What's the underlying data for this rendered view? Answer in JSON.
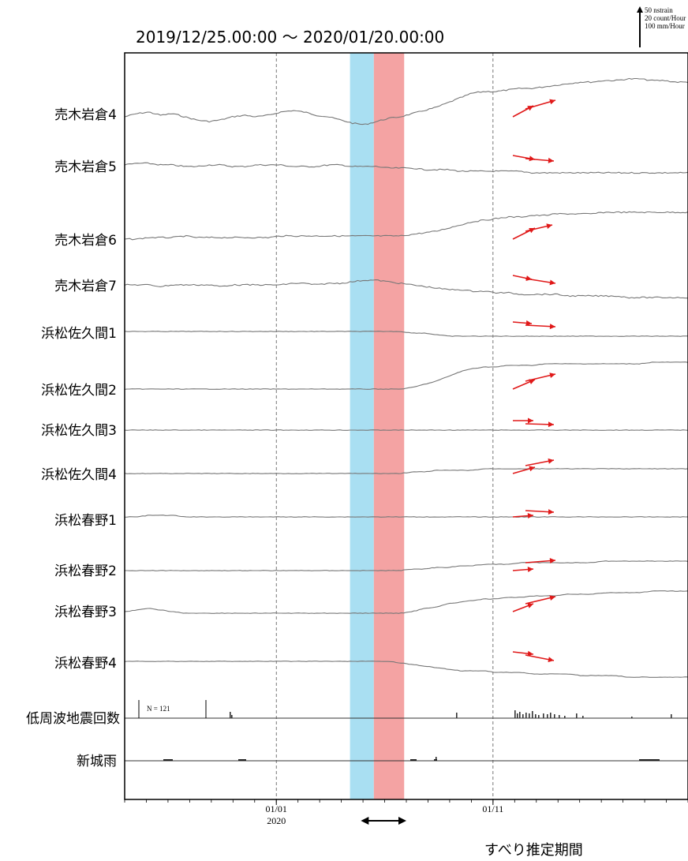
{
  "chart_data": {
    "type": "line",
    "title": "2019/12/25.00:00 〜 2020/01/20.00:00",
    "x_range": [
      "2019/12/25 00:00",
      "2020/01/20 00:00"
    ],
    "x_ticks": [
      {
        "label": "01/01",
        "sublabel": "2020"
      },
      {
        "label": "01/11",
        "sublabel": ""
      }
    ],
    "scale_legend": [
      "50 nstrain",
      "20 count/Hour",
      "100 mm/Hour"
    ],
    "shaded_periods": [
      {
        "name": "blue",
        "start_day": 10.4,
        "end_day": 11.5,
        "color": "#a9dff2"
      },
      {
        "name": "red",
        "start_day": 11.5,
        "end_day": 12.9,
        "color": "#f4a3a3"
      }
    ],
    "slip_caption": "すべり推定期間",
    "slip_arrow": {
      "start_day": 10.9,
      "end_day": 13.0
    },
    "series": [
      {
        "name": "売木岩倉4",
        "values": [
          0,
          2,
          3,
          1,
          2,
          0,
          -2,
          -3,
          -2,
          0,
          1,
          0,
          1,
          3,
          4,
          3,
          1,
          0,
          -2,
          -4,
          -5,
          -3,
          -1,
          0,
          2,
          4,
          6,
          9,
          12,
          15,
          16,
          16,
          17,
          18,
          18,
          19,
          20,
          21,
          22,
          22,
          23,
          23,
          24,
          24,
          23,
          23,
          22,
          22
        ],
        "arrows": [
          {
            "dx": 26,
            "dy": -14
          },
          {
            "dx": 38,
            "dy": -11
          }
        ]
      },
      {
        "name": "売木岩倉5",
        "values": [
          0,
          1,
          1,
          0,
          0,
          -1,
          -1,
          0,
          0,
          -1,
          -1,
          0,
          0,
          0,
          -1,
          -1,
          -1,
          0,
          0,
          -1,
          -1,
          -1,
          -2,
          -2,
          -2,
          -3,
          -3,
          -3,
          -4,
          -4,
          -4,
          -4,
          -4,
          -4,
          -5,
          -5,
          -5,
          -5,
          -5,
          -5,
          -5,
          -5,
          -5,
          -5,
          -5,
          -5,
          -5,
          -5
        ],
        "arrows": [
          {
            "dx": 28,
            "dy": 5
          },
          {
            "dx": 36,
            "dy": 3
          }
        ]
      },
      {
        "name": "売木岩倉6",
        "values": [
          0,
          0,
          1,
          1,
          1,
          2,
          1,
          1,
          1,
          1,
          1,
          1,
          1,
          2,
          2,
          2,
          2,
          2,
          2,
          2,
          2,
          2,
          2,
          2,
          3,
          4,
          5,
          7,
          9,
          11,
          12,
          13,
          14,
          14,
          15,
          15,
          16,
          16,
          16,
          16,
          17,
          17,
          17,
          17,
          17,
          17,
          17,
          17
        ],
        "arrows": [
          {
            "dx": 28,
            "dy": -14
          },
          {
            "dx": 34,
            "dy": -8
          }
        ]
      },
      {
        "name": "売木岩倉7",
        "values": [
          0,
          0,
          0,
          -1,
          0,
          0,
          0,
          0,
          -1,
          0,
          0,
          0,
          0,
          0,
          1,
          1,
          0,
          1,
          1,
          2,
          3,
          3,
          2,
          1,
          0,
          -1,
          -2,
          -3,
          -3,
          -4,
          -4,
          -5,
          -5,
          -6,
          -6,
          -6,
          -6,
          -7,
          -7,
          -7,
          -7,
          -7,
          -8,
          -8,
          -8,
          -8,
          -8,
          -8
        ],
        "arrows": [
          {
            "dx": 24,
            "dy": 5
          },
          {
            "dx": 38,
            "dy": 6
          }
        ]
      },
      {
        "name": "浜松佐久間1",
        "values": [
          0,
          0,
          0,
          0,
          0,
          0,
          0,
          0,
          0,
          0,
          0,
          0,
          0,
          0,
          0,
          0,
          0,
          0,
          0,
          0,
          0,
          0,
          0,
          0,
          -1,
          -1,
          -2,
          -3,
          -3,
          -3,
          -3,
          -3,
          -3,
          -3,
          -3,
          -3,
          -3,
          -3,
          -3,
          -3,
          -3,
          -3,
          -3,
          -3,
          -3,
          -3,
          -3,
          -3
        ],
        "arrows": [
          {
            "dx": 24,
            "dy": 2
          },
          {
            "dx": 38,
            "dy": 2
          }
        ]
      },
      {
        "name": "浜松佐久間2",
        "values": [
          0,
          0,
          0,
          0,
          0,
          0,
          0,
          0,
          0,
          0,
          0,
          0,
          0,
          0,
          0,
          0,
          0,
          0,
          0,
          0,
          0,
          0,
          0,
          0,
          1,
          3,
          5,
          8,
          11,
          13,
          14,
          14,
          15,
          15,
          15,
          16,
          16,
          16,
          16,
          16,
          16,
          16,
          16,
          16,
          17,
          17,
          17,
          17
        ],
        "arrows": [
          {
            "dx": 28,
            "dy": -12
          },
          {
            "dx": 38,
            "dy": -9
          }
        ]
      },
      {
        "name": "浜松佐久間3",
        "values": [
          0,
          0,
          0,
          0,
          0,
          0,
          0,
          0,
          0,
          0,
          0,
          0,
          0,
          0,
          0,
          0,
          0,
          0,
          0,
          0,
          0,
          0,
          0,
          0,
          0,
          0,
          0,
          0,
          0,
          0,
          0,
          0,
          0,
          0,
          0,
          0,
          0,
          0,
          0,
          0,
          0,
          0,
          0,
          0,
          0,
          0,
          0,
          0
        ],
        "arrows": [
          {
            "dx": 26,
            "dy": 0
          },
          {
            "dx": 36,
            "dy": 1
          }
        ]
      },
      {
        "name": "浜松佐久間4",
        "values": [
          0,
          0,
          0,
          0,
          0,
          0,
          0,
          0,
          0,
          0,
          0,
          0,
          0,
          0,
          0,
          0,
          0,
          0,
          0,
          0,
          0,
          0,
          0,
          0,
          1,
          1,
          2,
          2,
          2,
          2,
          3,
          3,
          3,
          3,
          3,
          3,
          3,
          3,
          3,
          3,
          3,
          3,
          3,
          3,
          3,
          3,
          3,
          3
        ],
        "arrows": [
          {
            "dx": 28,
            "dy": -8
          },
          {
            "dx": 36,
            "dy": -7
          }
        ]
      },
      {
        "name": "浜松春野1",
        "values": [
          0,
          0,
          1,
          1,
          1,
          0,
          0,
          0,
          0,
          0,
          0,
          0,
          0,
          0,
          0,
          0,
          0,
          0,
          0,
          0,
          0,
          0,
          0,
          0,
          0,
          0,
          0,
          0,
          0,
          0,
          0,
          0,
          0,
          0,
          0,
          0,
          0,
          0,
          0,
          0,
          0,
          0,
          0,
          0,
          0,
          0,
          0,
          0
        ],
        "arrows": [
          {
            "dx": 26,
            "dy": -2
          },
          {
            "dx": 36,
            "dy": 2
          }
        ]
      },
      {
        "name": "浜松春野2",
        "values": [
          0,
          0,
          0,
          0,
          0,
          0,
          0,
          0,
          0,
          0,
          0,
          0,
          0,
          0,
          0,
          0,
          0,
          0,
          0,
          0,
          0,
          0,
          0,
          0,
          1,
          1,
          2,
          2,
          3,
          3,
          4,
          4,
          4,
          5,
          5,
          5,
          5,
          5,
          5,
          5,
          6,
          6,
          6,
          6,
          6,
          6,
          6,
          6
        ],
        "arrows": [
          {
            "dx": 26,
            "dy": -2
          },
          {
            "dx": 38,
            "dy": -3
          }
        ]
      },
      {
        "name": "浜松春野3",
        "values": [
          0,
          1,
          2,
          1,
          0,
          -1,
          -1,
          -1,
          -1,
          -1,
          -1,
          -1,
          -1,
          -1,
          -1,
          -1,
          -1,
          -1,
          -1,
          -1,
          -1,
          -1,
          -1,
          -1,
          0,
          2,
          3,
          5,
          6,
          7,
          8,
          8,
          9,
          9,
          10,
          10,
          10,
          11,
          11,
          11,
          12,
          12,
          12,
          12,
          13,
          13,
          13,
          13
        ],
        "arrows": [
          {
            "dx": 26,
            "dy": -10
          },
          {
            "dx": 38,
            "dy": -9
          }
        ]
      },
      {
        "name": "浜松春野4",
        "values": [
          0,
          0,
          0,
          0,
          0,
          0,
          0,
          0,
          0,
          0,
          0,
          0,
          0,
          0,
          0,
          0,
          0,
          0,
          0,
          0,
          0,
          0,
          0,
          -1,
          -2,
          -3,
          -4,
          -5,
          -6,
          -6,
          -6,
          -7,
          -7,
          -7,
          -8,
          -8,
          -8,
          -8,
          -9,
          -9,
          -9,
          -9,
          -10,
          -10,
          -10,
          -10,
          -10,
          -10
        ],
        "arrows": [
          {
            "dx": 26,
            "dy": 3
          },
          {
            "dx": 36,
            "dy": 7
          }
        ]
      }
    ],
    "earthquake_row": {
      "name": "低周波地震回数",
      "note": "N =   121"
    },
    "rain_row": {
      "name": "新城雨"
    }
  }
}
